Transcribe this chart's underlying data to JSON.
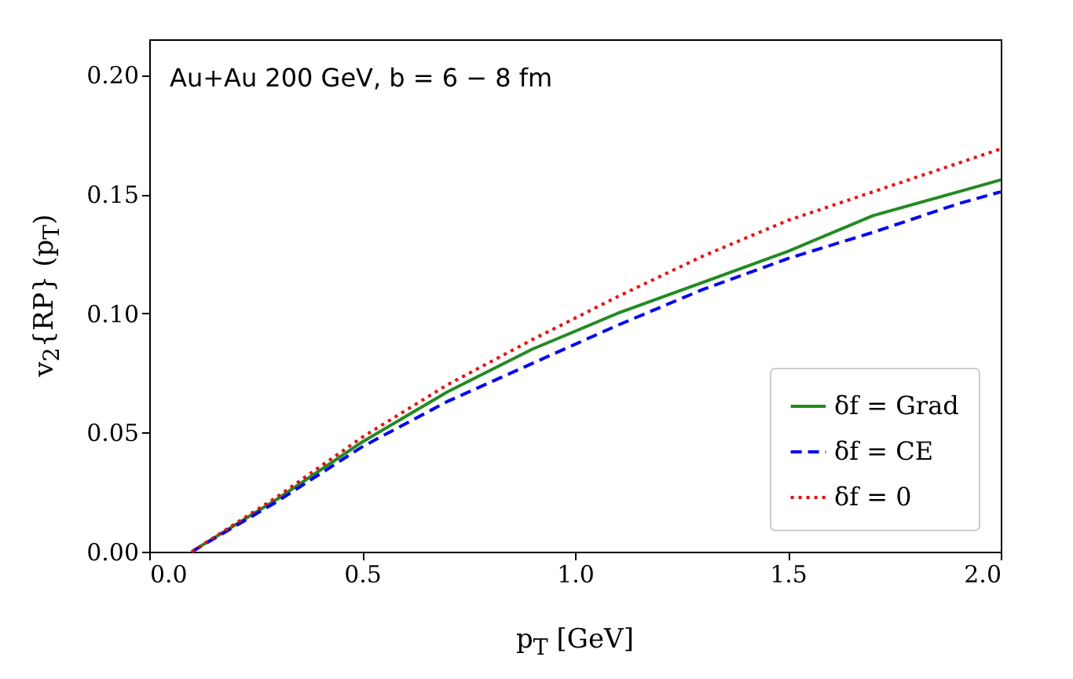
{
  "chart_data": {
    "type": "line",
    "xlabel": "p$_{T}$ [GeV]",
    "ylabel": "v$_{2}${RP} (p$_{T}$)",
    "annotations": [
      "Au+Au 200 GeV, b = 6 − 8 fm"
    ],
    "x": [
      0.1,
      0.3,
      0.5,
      0.7,
      0.9,
      1.1,
      1.3,
      1.5,
      1.7,
      1.9,
      2.0
    ],
    "series": [
      {
        "name": "δf = Grad",
        "color": "#228b22",
        "line_style": "solid",
        "values": [
          0,
          0.022,
          0.046,
          0.067,
          0.085,
          0.1,
          0.113,
          0.126,
          0.141,
          0.151,
          0.156
        ]
      },
      {
        "name": "δf = CE",
        "color": "#0000ff",
        "line_style": "dashed",
        "values": [
          0,
          0.021,
          0.044,
          0.063,
          0.079,
          0.095,
          0.11,
          0.123,
          0.134,
          0.146,
          0.151
        ]
      },
      {
        "name": "δf = 0",
        "color": "#ff0000",
        "line_style": "dotted",
        "values": [
          0,
          0.023,
          0.048,
          0.07,
          0.089,
          0.107,
          0.124,
          0.139,
          0.151,
          0.163,
          0.169
        ]
      }
    ],
    "xlim": [
      0,
      2
    ],
    "ylim": [
      0,
      0.215
    ],
    "xticks": [
      {
        "value": 0,
        "label": "0.0"
      },
      0.5,
      {
        "value": 1,
        "label": "1.0"
      },
      1.5,
      {
        "value": 2,
        "label": "2.0"
      }
    ],
    "yticks": [
      {
        "value": 0,
        "label": "0.00"
      },
      0.05,
      {
        "value": 0.1,
        "label": "0.10"
      },
      0.15,
      {
        "value": 0.2,
        "label": "0.20"
      }
    ],
    "grid": false,
    "legend": "bottom right",
    "marker": "none"
  }
}
